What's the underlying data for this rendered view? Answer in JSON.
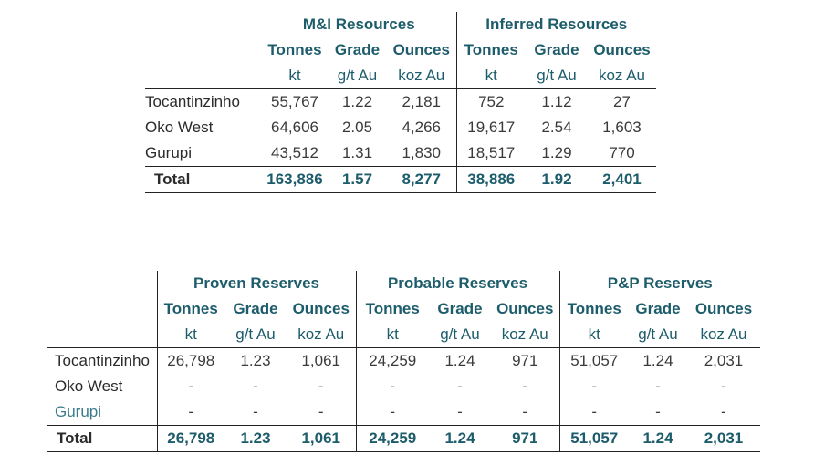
{
  "mi_table": {
    "group_headers": [
      "M&I Resources",
      "Inferred Resources"
    ],
    "col_headers": [
      "Tonnes",
      "Grade",
      "Ounces",
      "Tonnes",
      "Grade",
      "Ounces"
    ],
    "units": [
      "kt",
      "g/t Au",
      "koz Au",
      "kt",
      "g/t Au",
      "koz Au"
    ],
    "rows": [
      {
        "name": "Tocantinzinho",
        "values": [
          "55,767",
          "1.22",
          "2,181",
          "752",
          "1.12",
          "27"
        ]
      },
      {
        "name": "Oko West",
        "values": [
          "64,606",
          "2.05",
          "4,266",
          "19,617",
          "2.54",
          "1,603"
        ]
      },
      {
        "name": "Gurupi",
        "values": [
          "43,512",
          "1.31",
          "1,830",
          "18,517",
          "1.29",
          "770"
        ]
      }
    ],
    "total": {
      "name": "Total",
      "values": [
        "163,886",
        "1.57",
        "8,277",
        "38,886",
        "1.92",
        "2,401"
      ]
    }
  },
  "reserves_table": {
    "group_headers": [
      "Proven Reserves",
      "Probable Reserves",
      "P&P Reserves"
    ],
    "col_headers": [
      "Tonnes",
      "Grade",
      "Ounces",
      "Tonnes",
      "Grade",
      "Ounces",
      "Tonnes",
      "Grade",
      "Ounces"
    ],
    "units": [
      "kt",
      "g/t Au",
      "koz Au",
      "kt",
      "g/t Au",
      "koz Au",
      "kt",
      "g/t Au",
      "koz Au"
    ],
    "rows": [
      {
        "name": "Tocantinzinho",
        "values": [
          "26,798",
          "1.23",
          "1,061",
          "24,259",
          "1.24",
          "971",
          "51,057",
          "1.24",
          "2,031"
        ]
      },
      {
        "name": "Oko West",
        "values": [
          "-",
          "-",
          "-",
          "-",
          "-",
          "-",
          "-",
          "-",
          "-"
        ]
      },
      {
        "name": "Gurupi",
        "values": [
          "-",
          "-",
          "-",
          "-",
          "-",
          "-",
          "-",
          "-",
          "-"
        ]
      }
    ],
    "total": {
      "name": "Total",
      "values": [
        "26,798",
        "1.23",
        "1,061",
        "24,259",
        "1.24",
        "971",
        "51,057",
        "1.24",
        "2,031"
      ]
    }
  }
}
